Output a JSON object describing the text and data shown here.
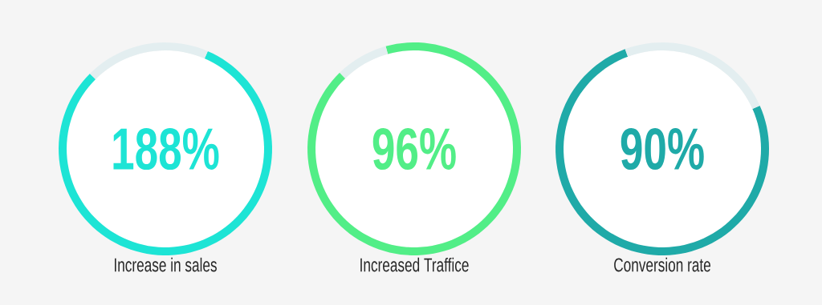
{
  "chart_data": [
    {
      "type": "donut",
      "categories": [
        null,
        null
      ],
      "values": [
        81,
        19
      ],
      "colors": [
        "#1de4d5",
        "#e3eef0"
      ],
      "annotations": [
        "188%"
      ],
      "xlabel": "Increase in sales"
    },
    {
      "type": "donut",
      "categories": [
        null,
        null
      ],
      "values": [
        92,
        8
      ],
      "colors": [
        "#52ee87",
        "#e3eef0"
      ],
      "annotations": [
        "96%"
      ],
      "xlabel": "Increased Traffice"
    },
    {
      "type": "donut",
      "categories": [
        null,
        null
      ],
      "values": [
        76,
        24
      ],
      "colors": [
        "#1faaa8",
        "#e3eef0"
      ],
      "annotations": [
        "90%"
      ],
      "xlabel": "Conversion rate"
    }
  ]
}
